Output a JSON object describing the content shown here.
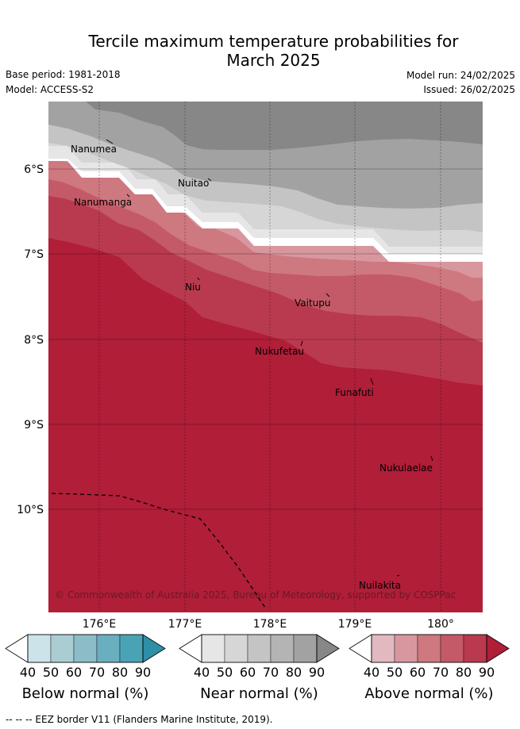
{
  "title": {
    "line1": "Tercile maximum temperature probabilities for",
    "line2": "March 2025"
  },
  "meta": {
    "base_period": "Base period: 1981-2018",
    "model": "Model: ACCESS-S2",
    "model_run": "Model run: 24/02/2025",
    "issued": "Issued: 26/02/2025"
  },
  "axes": {
    "lat_ticks": [
      "6°S",
      "7°S",
      "8°S",
      "9°S",
      "10°S"
    ],
    "lon_ticks": [
      "176°E",
      "177°E",
      "178°E",
      "179°E",
      "180°"
    ]
  },
  "islands": [
    {
      "name": "Nanumea"
    },
    {
      "name": "Nuitao"
    },
    {
      "name": "Nanumanga"
    },
    {
      "name": "Niu"
    },
    {
      "name": "Vaitupu"
    },
    {
      "name": "Nukufetau"
    },
    {
      "name": "Funafuti"
    },
    {
      "name": "Nukulaelae"
    },
    {
      "name": "Nuilakita"
    }
  ],
  "copyright": "© Commonwealth of Australia 2025, Bureau of Meteorology, supported by COSPPac",
  "colorbars": [
    {
      "title": "Below normal (%)",
      "ticks": [
        "40",
        "50",
        "60",
        "70",
        "80",
        "90"
      ],
      "colors": [
        "#ffffff",
        "#cce3ea",
        "#aacdd3",
        "#8cbcc8",
        "#6aafbf",
        "#48a4b5",
        "#2e8fa6"
      ]
    },
    {
      "title": "Near normal (%)",
      "ticks": [
        "40",
        "50",
        "60",
        "70",
        "80",
        "90"
      ],
      "colors": [
        "#ffffff",
        "#e6e6e6",
        "#d6d6d6",
        "#c4c4c4",
        "#b4b4b4",
        "#a2a2a2",
        "#878787"
      ]
    },
    {
      "title": "Above normal (%)",
      "ticks": [
        "40",
        "50",
        "60",
        "70",
        "80",
        "90"
      ],
      "colors": [
        "#ffffff",
        "#e2b9c0",
        "#d8979f",
        "#ce7880",
        "#c45a67",
        "#b93a4e",
        "#b01e38"
      ]
    }
  ],
  "footnote": "--  --  -- EEZ border V11 (Flanders Marine Institute, 2019)."
}
